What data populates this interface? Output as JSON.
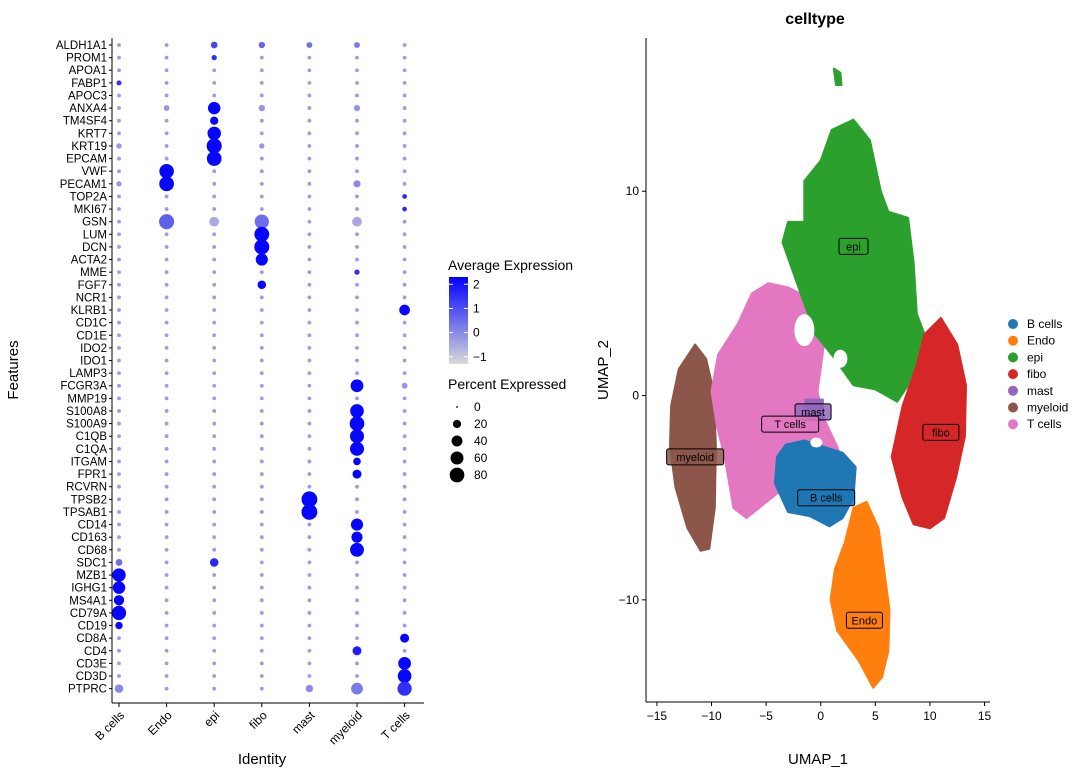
{
  "chart_data": [
    {
      "type": "dotplot",
      "xlabel": "Identity",
      "ylabel": "Features",
      "categories": [
        "B cells",
        "Endo",
        "epi",
        "fibo",
        "mast",
        "myeloid",
        "T cells"
      ],
      "features": [
        "ALDH1A1",
        "PROM1",
        "APOA1",
        "FABP1",
        "APOC3",
        "ANXA4",
        "TM4SF4",
        "KRT7",
        "KRT19",
        "EPCAM",
        "VWF",
        "PECAM1",
        "TOP2A",
        "MKI67",
        "GSN",
        "LUM",
        "DCN",
        "ACTA2",
        "MME",
        "FGF7",
        "NCR1",
        "KLRB1",
        "CD1C",
        "CD1E",
        "IDO2",
        "IDO1",
        "LAMP3",
        "FCGR3A",
        "MMP19",
        "S100A8",
        "S100A9",
        "C1QB",
        "C1QA",
        "ITGAM",
        "FPR1",
        "RCVRN",
        "TPSB2",
        "TPSAB1",
        "CD14",
        "CD163",
        "CD68",
        "SDC1",
        "MZB1",
        "IGHG1",
        "MS4A1",
        "CD79A",
        "CD19",
        "CD8A",
        "CD4",
        "CD3E",
        "CD3D",
        "PTPRC"
      ],
      "color_legend": {
        "title": "Average Expression",
        "ticks": [
          2,
          1,
          0,
          -1
        ],
        "range": [
          -1.3,
          2.3
        ],
        "low_color": "#d9d9d9",
        "high_color": "#0000ff"
      },
      "size_legend": {
        "title": "Percent Expressed",
        "values": [
          0,
          20,
          40,
          60,
          80
        ]
      },
      "notable_points": [
        {
          "feature": "ALDH1A1",
          "category": "epi",
          "avg_exp": 1.1,
          "pct": 12
        },
        {
          "feature": "ALDH1A1",
          "category": "fibo",
          "avg_exp": 0.6,
          "pct": 10
        },
        {
          "feature": "ALDH1A1",
          "category": "mast",
          "avg_exp": 0.4,
          "pct": 8
        },
        {
          "feature": "ALDH1A1",
          "category": "myeloid",
          "avg_exp": 0.3,
          "pct": 8
        },
        {
          "feature": "PROM1",
          "category": "epi",
          "avg_exp": 1.5,
          "pct": 6
        },
        {
          "feature": "FABP1",
          "category": "B cells",
          "avg_exp": 1.5,
          "pct": 5
        },
        {
          "feature": "ANXA4",
          "category": "epi",
          "avg_exp": 2.2,
          "pct": 55
        },
        {
          "feature": "ANXA4",
          "category": "Endo",
          "avg_exp": -0.2,
          "pct": 8
        },
        {
          "feature": "ANXA4",
          "category": "fibo",
          "avg_exp": -0.2,
          "pct": 10
        },
        {
          "feature": "ANXA4",
          "category": "myeloid",
          "avg_exp": -0.2,
          "pct": 10
        },
        {
          "feature": "TM4SF4",
          "category": "epi",
          "avg_exp": 2.2,
          "pct": 20
        },
        {
          "feature": "KRT7",
          "category": "epi",
          "avg_exp": 2.2,
          "pct": 65
        },
        {
          "feature": "KRT19",
          "category": "epi",
          "avg_exp": 2.2,
          "pct": 85
        },
        {
          "feature": "KRT19",
          "category": "B cells",
          "avg_exp": -0.2,
          "pct": 6
        },
        {
          "feature": "KRT19",
          "category": "fibo",
          "avg_exp": -0.2,
          "pct": 6
        },
        {
          "feature": "EPCAM",
          "category": "epi",
          "avg_exp": 2.2,
          "pct": 80
        },
        {
          "feature": "VWF",
          "category": "Endo",
          "avg_exp": 2.2,
          "pct": 78
        },
        {
          "feature": "PECAM1",
          "category": "Endo",
          "avg_exp": 2.2,
          "pct": 80
        },
        {
          "feature": "PECAM1",
          "category": "myeloid",
          "avg_exp": 0.0,
          "pct": 14
        },
        {
          "feature": "PECAM1",
          "category": "B cells",
          "avg_exp": -0.2,
          "pct": 6
        },
        {
          "feature": "TOP2A",
          "category": "T cells",
          "avg_exp": 1.6,
          "pct": 4
        },
        {
          "feature": "MKI67",
          "category": "T cells",
          "avg_exp": 1.6,
          "pct": 4
        },
        {
          "feature": "GSN",
          "category": "Endo",
          "avg_exp": 0.7,
          "pct": 85
        },
        {
          "feature": "GSN",
          "category": "fibo",
          "avg_exp": 0.5,
          "pct": 75
        },
        {
          "feature": "GSN",
          "category": "epi",
          "avg_exp": -0.5,
          "pct": 30
        },
        {
          "feature": "GSN",
          "category": "myeloid",
          "avg_exp": -0.5,
          "pct": 30
        },
        {
          "feature": "LUM",
          "category": "fibo",
          "avg_exp": 2.2,
          "pct": 82
        },
        {
          "feature": "DCN",
          "category": "fibo",
          "avg_exp": 2.2,
          "pct": 85
        },
        {
          "feature": "ACTA2",
          "category": "fibo",
          "avg_exp": 2.2,
          "pct": 52
        },
        {
          "feature": "MME",
          "category": "myeloid",
          "avg_exp": 1.5,
          "pct": 6
        },
        {
          "feature": "FGF7",
          "category": "fibo",
          "avg_exp": 2.2,
          "pct": 22
        },
        {
          "feature": "KLRB1",
          "category": "T cells",
          "avg_exp": 2.2,
          "pct": 38
        },
        {
          "feature": "FCGR3A",
          "category": "myeloid",
          "avg_exp": 2.2,
          "pct": 58
        },
        {
          "feature": "FCGR3A",
          "category": "T cells",
          "avg_exp": -0.2,
          "pct": 8
        },
        {
          "feature": "S100A8",
          "category": "myeloid",
          "avg_exp": 2.2,
          "pct": 68
        },
        {
          "feature": "S100A9",
          "category": "myeloid",
          "avg_exp": 2.2,
          "pct": 80
        },
        {
          "feature": "C1QB",
          "category": "myeloid",
          "avg_exp": 2.2,
          "pct": 72
        },
        {
          "feature": "C1QA",
          "category": "myeloid",
          "avg_exp": 2.2,
          "pct": 72
        },
        {
          "feature": "ITGAM",
          "category": "myeloid",
          "avg_exp": 2.2,
          "pct": 16
        },
        {
          "feature": "FPR1",
          "category": "myeloid",
          "avg_exp": 2.2,
          "pct": 25
        },
        {
          "feature": "TPSB2",
          "category": "mast",
          "avg_exp": 2.2,
          "pct": 95
        },
        {
          "feature": "TPSAB1",
          "category": "mast",
          "avg_exp": 2.2,
          "pct": 95
        },
        {
          "feature": "CD14",
          "category": "myeloid",
          "avg_exp": 2.2,
          "pct": 52
        },
        {
          "feature": "CD163",
          "category": "myeloid",
          "avg_exp": 2.2,
          "pct": 42
        },
        {
          "feature": "CD68",
          "category": "myeloid",
          "avg_exp": 2.2,
          "pct": 70
        },
        {
          "feature": "SDC1",
          "category": "epi",
          "avg_exp": 1.6,
          "pct": 22
        },
        {
          "feature": "SDC1",
          "category": "B cells",
          "avg_exp": 0.5,
          "pct": 12
        },
        {
          "feature": "MZB1",
          "category": "B cells",
          "avg_exp": 2.2,
          "pct": 65
        },
        {
          "feature": "IGHG1",
          "category": "B cells",
          "avg_exp": 2.2,
          "pct": 55
        },
        {
          "feature": "MS4A1",
          "category": "B cells",
          "avg_exp": 2.2,
          "pct": 35
        },
        {
          "feature": "CD79A",
          "category": "B cells",
          "avg_exp": 2.2,
          "pct": 75
        },
        {
          "feature": "CD19",
          "category": "B cells",
          "avg_exp": 2.2,
          "pct": 15
        },
        {
          "feature": "CD8A",
          "category": "T cells",
          "avg_exp": 2.2,
          "pct": 25
        },
        {
          "feature": "CD4",
          "category": "myeloid",
          "avg_exp": 1.8,
          "pct": 25
        },
        {
          "feature": "CD3E",
          "category": "T cells",
          "avg_exp": 2.2,
          "pct": 58
        },
        {
          "feature": "CD3D",
          "category": "T cells",
          "avg_exp": 2.2,
          "pct": 68
        },
        {
          "feature": "PTPRC",
          "category": "T cells",
          "avg_exp": 1.5,
          "pct": 75
        },
        {
          "feature": "PTPRC",
          "category": "myeloid",
          "avg_exp": 0.3,
          "pct": 48
        },
        {
          "feature": "PTPRC",
          "category": "B cells",
          "avg_exp": 0.0,
          "pct": 22
        },
        {
          "feature": "PTPRC",
          "category": "mast",
          "avg_exp": 0.0,
          "pct": 15
        }
      ]
    },
    {
      "type": "scatter",
      "title": "celltype",
      "xlabel": "UMAP_1",
      "ylabel": "UMAP_2",
      "xlim": [
        -16,
        15.5
      ],
      "ylim": [
        -15,
        17.5
      ],
      "xticks": [
        -15,
        -10,
        -5,
        0,
        5,
        10,
        15
      ],
      "yticks": [
        10,
        0,
        -10
      ],
      "legend_position": "right",
      "clusters": [
        {
          "name": "B cells",
          "color": "#1f77b4",
          "label_x": 0.5,
          "label_y": -5
        },
        {
          "name": "Endo",
          "color": "#ff7f0e",
          "label_x": 4,
          "label_y": -11
        },
        {
          "name": "epi",
          "color": "#2ca02c",
          "label_x": 3,
          "label_y": 7.3
        },
        {
          "name": "fibo",
          "color": "#d62728",
          "label_x": 11,
          "label_y": -1.8
        },
        {
          "name": "mast",
          "color": "#9467bd",
          "label_x": -0.7,
          "label_y": -0.8
        },
        {
          "name": "myeloid",
          "color": "#8c564b",
          "label_x": -11.5,
          "label_y": -3
        },
        {
          "name": "T cells",
          "color": "#e377c2",
          "label_x": -2.8,
          "label_y": -1.4
        }
      ]
    }
  ]
}
